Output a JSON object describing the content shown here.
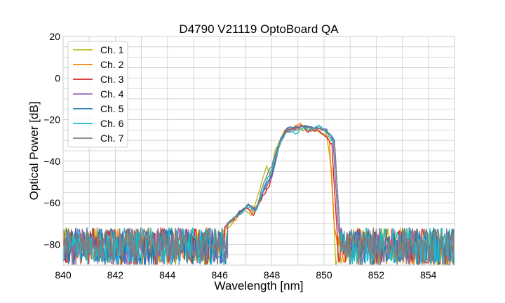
{
  "chart_data": {
    "type": "line",
    "title": "D4790 V21119 OptoBoard QA",
    "xlabel": "Wavelength [nm]",
    "ylabel": "Optical Power [dB]",
    "xlim": [
      840,
      855
    ],
    "ylim": [
      -90,
      20
    ],
    "xticks": [
      840,
      842,
      844,
      846,
      848,
      850,
      852,
      854
    ],
    "xtick_labels": [
      "840",
      "842",
      "844",
      "846",
      "848",
      "850",
      "852",
      "854"
    ],
    "yticks": [
      -80,
      -60,
      -40,
      -20,
      0,
      20
    ],
    "ytick_labels": [
      "−80",
      "−60",
      "−40",
      "−20",
      "0",
      "20"
    ],
    "grid": true,
    "minor_grid": true,
    "legend_position": "top-left",
    "noise_floor": {
      "x_range": [
        840,
        855
      ],
      "y_range": [
        -90,
        -72
      ]
    },
    "series": [
      {
        "name": "Ch. 1",
        "color": "#bcbd22",
        "x": [
          846.0,
          846.5,
          846.9,
          847.2,
          847.5,
          847.8,
          847.95,
          848.1,
          848.3,
          848.6,
          848.9,
          849.2,
          849.5,
          849.8,
          850.1,
          850.3,
          850.45
        ],
        "y": [
          -75,
          -70,
          -63,
          -66,
          -55,
          -42,
          -48,
          -36,
          -30,
          -25,
          -24,
          -25,
          -24,
          -26,
          -28,
          -45,
          -90
        ]
      },
      {
        "name": "Ch. 2",
        "color": "#ff7f0e",
        "x": [
          846.2,
          846.6,
          847.0,
          847.3,
          847.6,
          847.9,
          848.2,
          848.5,
          848.8,
          849.1,
          849.4,
          849.7,
          850.0,
          850.2,
          850.4
        ],
        "y": [
          -72,
          -68,
          -62,
          -65,
          -56,
          -50,
          -34,
          -25,
          -24,
          -22,
          -25,
          -24,
          -25,
          -30,
          -72
        ]
      },
      {
        "name": "Ch. 3",
        "color": "#d62728",
        "x": [
          846.2,
          846.6,
          847.0,
          847.3,
          847.6,
          847.9,
          848.2,
          848.5,
          848.8,
          849.1,
          849.4,
          849.7,
          850.0,
          850.3,
          850.5
        ],
        "y": [
          -71,
          -67,
          -62,
          -66,
          -58,
          -52,
          -36,
          -26,
          -25,
          -23,
          -26,
          -25,
          -27,
          -32,
          -74
        ]
      },
      {
        "name": "Ch. 4",
        "color": "#9467bd",
        "x": [
          846.3,
          846.7,
          847.1,
          847.4,
          847.7,
          848.0,
          848.3,
          848.6,
          848.9,
          849.2,
          849.5,
          849.8,
          850.1,
          850.35,
          850.55
        ],
        "y": [
          -70,
          -66,
          -61,
          -64,
          -54,
          -48,
          -32,
          -25,
          -24,
          -23,
          -24,
          -24,
          -26,
          -31,
          -73
        ]
      },
      {
        "name": "Ch. 5",
        "color": "#1f77b4",
        "x": [
          846.3,
          846.7,
          847.1,
          847.4,
          847.7,
          848.0,
          848.3,
          848.6,
          848.9,
          849.2,
          849.5,
          849.8,
          850.1,
          850.4,
          850.6
        ],
        "y": [
          -70,
          -65,
          -61,
          -63,
          -53,
          -46,
          -31,
          -24,
          -24,
          -23,
          -24,
          -24,
          -25,
          -30,
          -72
        ]
      },
      {
        "name": "Ch. 6",
        "color": "#17becf",
        "x": [
          846.3,
          846.7,
          847.1,
          847.4,
          847.7,
          848.0,
          848.3,
          848.6,
          848.9,
          849.2,
          849.5,
          849.8,
          850.1,
          850.4,
          850.6
        ],
        "y": [
          -70,
          -66,
          -62,
          -64,
          -52,
          -44,
          -32,
          -25,
          -27,
          -24,
          -25,
          -23,
          -26,
          -32,
          -73
        ]
      },
      {
        "name": "Ch. 7",
        "color": "#7f7f7f",
        "x": [
          846.3,
          846.7,
          847.1,
          847.4,
          847.7,
          848.0,
          848.3,
          848.6,
          848.9,
          849.2,
          849.5,
          849.8,
          850.1,
          850.4,
          850.6
        ],
        "y": [
          -70,
          -66,
          -61,
          -63,
          -50,
          -42,
          -30,
          -25,
          -25,
          -23,
          -24,
          -24,
          -25,
          -31,
          -72
        ]
      }
    ]
  }
}
